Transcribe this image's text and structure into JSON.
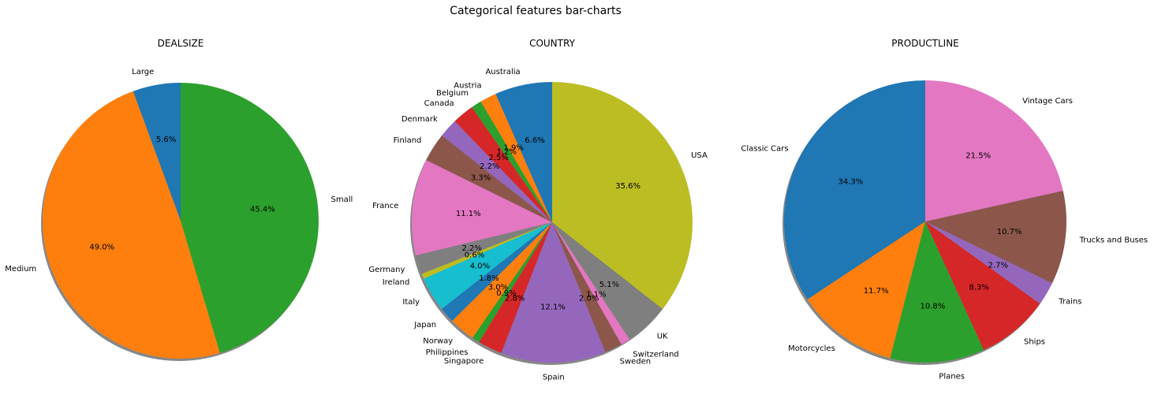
{
  "figure": {
    "suptitle": "Categorical features bar-charts"
  },
  "chart_data": [
    {
      "type": "pie",
      "title": "DEALSIZE",
      "start_angle_deg": 90,
      "shadow": true,
      "categories": [
        "Large",
        "Medium",
        "Small"
      ],
      "values": [
        5.6,
        49.0,
        45.4
      ],
      "value_labels": [
        "5.6%",
        "49.0%",
        "45.4%"
      ],
      "colors": [
        "#1f77b4",
        "#ff7f0e",
        "#2ca02c"
      ]
    },
    {
      "type": "pie",
      "title": "COUNTRY",
      "start_angle_deg": 90,
      "shadow": true,
      "categories": [
        "Australia",
        "Austria",
        "Belgium",
        "Canada",
        "Denmark",
        "Finland",
        "France",
        "Germany",
        "Ireland",
        "Italy",
        "Japan",
        "Norway",
        "Philippines",
        "Singapore",
        "Spain",
        "Sweden",
        "Switzerland",
        "UK",
        "USA"
      ],
      "values": [
        6.6,
        1.9,
        1.2,
        2.5,
        2.2,
        3.3,
        11.1,
        2.2,
        0.6,
        4.0,
        1.8,
        3.0,
        0.9,
        2.8,
        12.1,
        2.0,
        1.1,
        5.1,
        35.6
      ],
      "value_labels": [
        "6.6%",
        "1.9%",
        "1.2%",
        "2.5%",
        "2.2%",
        "3.3%",
        "11.1%",
        "2.2%",
        "0.6%",
        "4.0%",
        "1.8%",
        "3.0%",
        "0.9%",
        "2.8%",
        "12.1%",
        "2.0%",
        "1.1%",
        "5.1%",
        "35.6%"
      ],
      "colors": [
        "#1f77b4",
        "#ff7f0e",
        "#2ca02c",
        "#d62728",
        "#9467bd",
        "#8c564b",
        "#e377c2",
        "#7f7f7f",
        "#bcbd22",
        "#17becf",
        "#1f77b4",
        "#ff7f0e",
        "#2ca02c",
        "#d62728",
        "#9467bd",
        "#8c564b",
        "#e377c2",
        "#7f7f7f",
        "#bcbd22"
      ]
    },
    {
      "type": "pie",
      "title": "PRODUCTLINE",
      "start_angle_deg": 90,
      "shadow": true,
      "categories": [
        "Classic Cars",
        "Motorcycles",
        "Planes",
        "Ships",
        "Trains",
        "Trucks and Buses",
        "Vintage Cars"
      ],
      "values": [
        34.3,
        11.7,
        10.8,
        8.3,
        2.7,
        10.7,
        21.5
      ],
      "value_labels": [
        "34.3%",
        "11.7%",
        "10.8%",
        "8.3%",
        "2.7%",
        "10.7%",
        "21.5%"
      ],
      "colors": [
        "#1f77b4",
        "#ff7f0e",
        "#2ca02c",
        "#d62728",
        "#9467bd",
        "#8c564b",
        "#e377c2"
      ]
    }
  ]
}
